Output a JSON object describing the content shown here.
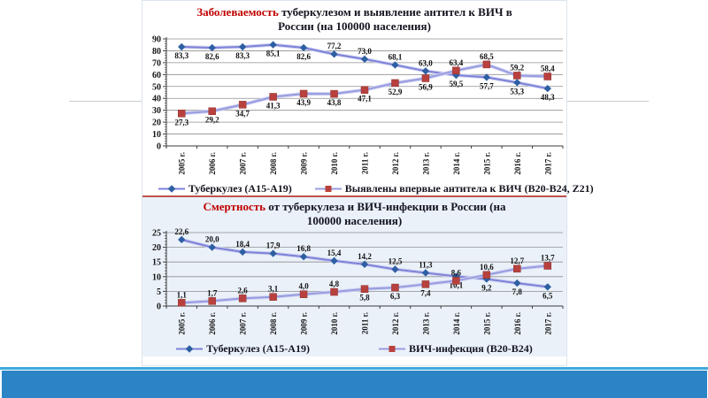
{
  "slide": {
    "divider_color": "#c0504d",
    "accent_line_color": "#3fa9dc",
    "accent_bar_color": "#2a84c6"
  },
  "chart_data": [
    {
      "type": "line",
      "title_highlight": "Заболеваемость",
      "title_rest": " туберкулезом и выявление антител к ВИЧ в России (на 100000 населения)",
      "categories": [
        "2005 г.",
        "2006 г.",
        "2007 г.",
        "2008 г.",
        "2009 г.",
        "2010 г.",
        "2011 г.",
        "2012 г.",
        "2013 г.",
        "2014 г.",
        "2015 г.",
        "2016 г.",
        "2017 г."
      ],
      "ylim": [
        0,
        90
      ],
      "ytick_step": 10,
      "grid": true,
      "legend_position": "bottom",
      "series": [
        {
          "name": "Туберкулез (А15-А19)",
          "marker": "diamond",
          "marker_color": "#2e5fa3",
          "line_color": "#7e82d8",
          "values": [
            83.3,
            82.6,
            83.3,
            85.1,
            82.6,
            77.2,
            73.0,
            68.1,
            63.0,
            59.5,
            57.7,
            53.3,
            48.3
          ],
          "labels": [
            "83,3",
            "82,6",
            "83,3",
            "85,1",
            "82,6",
            "77,2",
            "73,0",
            "68,1",
            "63,0",
            "59,5",
            "57,7",
            "53,3",
            "48,3"
          ],
          "label_pos": [
            "b",
            "b",
            "b",
            "b",
            "b",
            "a",
            "a",
            "a",
            "a",
            "b",
            "b",
            "b",
            "b"
          ]
        },
        {
          "name": "Выявлены впервые антитела к ВИЧ (В20-В24, Z21)",
          "marker": "square",
          "marker_color": "#b8413d",
          "line_color": "#989ce0",
          "values": [
            27.3,
            29.2,
            34.7,
            41.3,
            43.9,
            43.8,
            47.1,
            52.9,
            56.9,
            63.4,
            68.5,
            59.2,
            58.4
          ],
          "labels": [
            "27,3",
            "29,2",
            "34,7",
            "41,3",
            "43,9",
            "43,8",
            "47,1",
            "52,9",
            "56,9",
            "63,4",
            "68,5",
            "59,2",
            "58,4"
          ],
          "label_pos": [
            "b",
            "b",
            "b",
            "b",
            "b",
            "b",
            "b",
            "b",
            "b",
            "a",
            "a",
            "a",
            "a"
          ]
        }
      ]
    },
    {
      "type": "line",
      "title_highlight": "Смертность",
      "title_rest": " от туберкулеза и ВИЧ-инфекции в России (на 100000 населения)",
      "categories": [
        "2005 г.",
        "2006 г.",
        "2007 г.",
        "2008 г.",
        "2009 г.",
        "2010 г.",
        "2011 г.",
        "2012 г.",
        "2013 г.",
        "2014 г.",
        "2015 г.",
        "2016 г.",
        "2017 г."
      ],
      "ylim": [
        0,
        25
      ],
      "ytick_step": 5,
      "grid": true,
      "legend_position": "bottom",
      "series": [
        {
          "name": "Туберкулез (А15-А19)",
          "marker": "diamond",
          "marker_color": "#2e5fa3",
          "line_color": "#7e82d8",
          "values": [
            22.6,
            20.0,
            18.4,
            17.9,
            16.8,
            15.4,
            14.2,
            12.5,
            11.3,
            10.1,
            9.2,
            7.8,
            6.5
          ],
          "labels": [
            "22,6",
            "20,0",
            "18,4",
            "17,9",
            "16,8",
            "15,4",
            "14,2",
            "12,5",
            "11,3",
            "10,1",
            "9,2",
            "7,8",
            "6,5"
          ],
          "label_pos": [
            "a",
            "a",
            "a",
            "a",
            "a",
            "a",
            "a",
            "a",
            "a",
            "b",
            "b",
            "b",
            "b"
          ]
        },
        {
          "name": "ВИЧ-инфекция (В20-В24)",
          "marker": "square",
          "marker_color": "#b8413d",
          "line_color": "#989ce0",
          "values": [
            1.1,
            1.7,
            2.6,
            3.1,
            4.0,
            4.8,
            5.8,
            6.3,
            7.4,
            8.6,
            10.6,
            12.7,
            13.7
          ],
          "labels": [
            "1,1",
            "1,7",
            "2,6",
            "3,1",
            "4,0",
            "4,8",
            "5,8",
            "6,3",
            "7,4",
            "8,6",
            "10,6",
            "12,7",
            "13,7"
          ],
          "label_pos": [
            "a",
            "a",
            "a",
            "a",
            "a",
            "a",
            "b",
            "b",
            "b",
            "a",
            "a",
            "a",
            "a"
          ]
        }
      ]
    }
  ]
}
